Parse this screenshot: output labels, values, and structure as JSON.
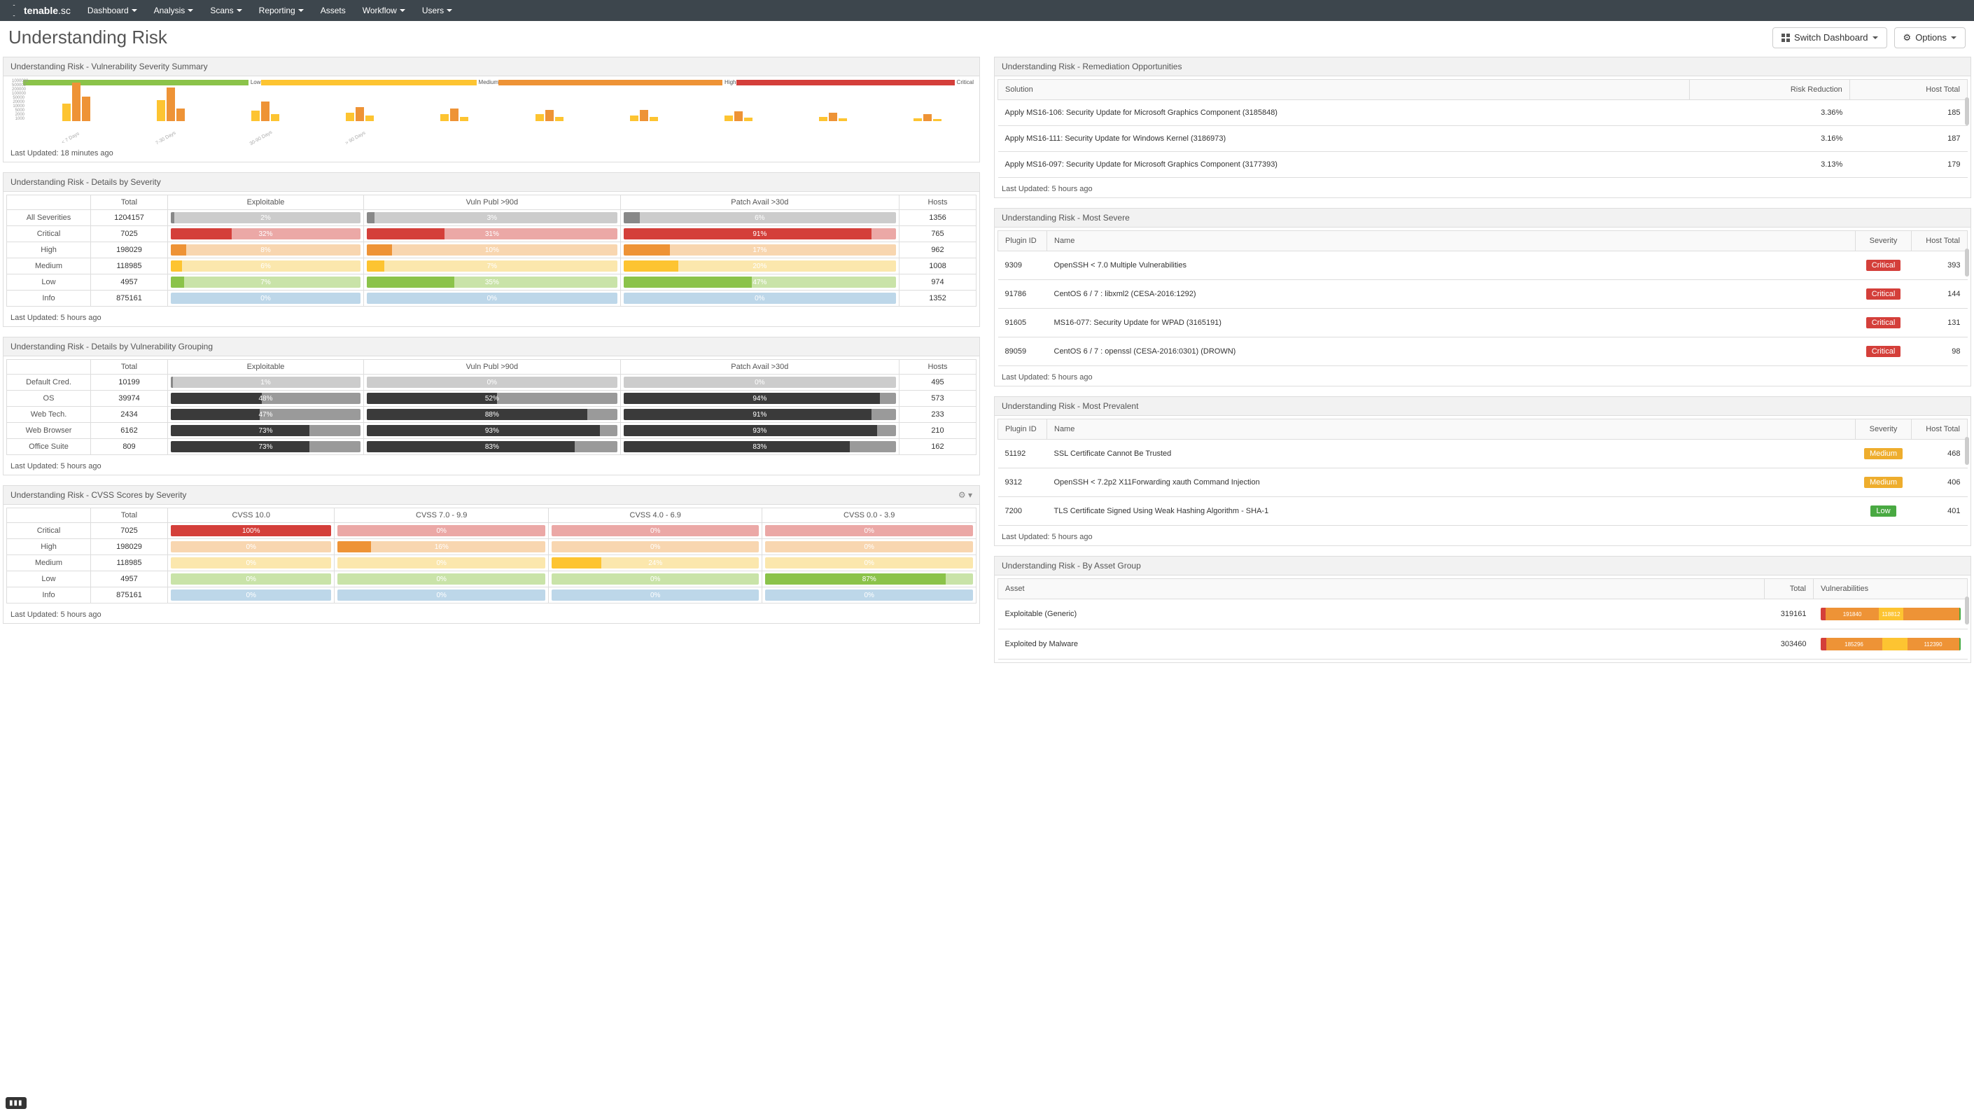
{
  "nav": {
    "brand_bold": "tenable",
    "brand_suffix": ".sc",
    "items": [
      "Dashboard",
      "Analysis",
      "Scans",
      "Reporting",
      "Assets",
      "Workflow",
      "Users"
    ],
    "dropdown": [
      true,
      true,
      true,
      true,
      false,
      true,
      true
    ]
  },
  "page": {
    "title": "Understanding Risk",
    "switch_btn": "Switch Dashboard",
    "options_btn": "Options"
  },
  "colors": {
    "critical": "#d43f3a",
    "critical_bg": "#eba8a6",
    "high": "#ee9336",
    "high_bg": "#f8d6b0",
    "medium": "#fdc431",
    "medium_bg": "#fbe7ad",
    "low": "#8bc34a",
    "low_bg": "#c9e3a8",
    "info": "#7fb3d5",
    "info_bg": "#bdd7e9",
    "gray": "#888888",
    "gray_bg": "#cccccc",
    "dark": "#3a3a3a",
    "dark_bg": "#9a9a9a"
  },
  "severity_chart": {
    "title": "Understanding Risk - Vulnerability Severity Summary",
    "legend": [
      "Low",
      "Medium",
      "High",
      "Critical"
    ],
    "legend_colors": [
      "#8bc34a",
      "#fdc431",
      "#ee9336",
      "#d43f3a"
    ],
    "yaxis": [
      "1000000",
      "500000",
      "200000",
      "100000",
      "50000",
      "20000",
      "10000",
      "5000",
      "2000",
      "1000"
    ],
    "groups": [
      {
        "x": "< 7 Days",
        "bars": [
          {
            "h": 25,
            "c": "#fdc431"
          },
          {
            "h": 55,
            "c": "#ee9336"
          },
          {
            "h": 35,
            "c": "#ee9336"
          }
        ]
      },
      {
        "x": "7-30 Days",
        "bars": [
          {
            "h": 30,
            "c": "#fdc431"
          },
          {
            "h": 48,
            "c": "#ee9336"
          },
          {
            "h": 18,
            "c": "#ee9336"
          }
        ]
      },
      {
        "x": "30-90 Days",
        "bars": [
          {
            "h": 15,
            "c": "#fdc431"
          },
          {
            "h": 28,
            "c": "#ee9336"
          },
          {
            "h": 10,
            "c": "#fdc431"
          }
        ]
      },
      {
        "x": "> 90 Days",
        "bars": [
          {
            "h": 12,
            "c": "#fdc431"
          },
          {
            "h": 20,
            "c": "#ee9336"
          },
          {
            "h": 8,
            "c": "#fdc431"
          }
        ]
      },
      {
        "x": "",
        "bars": [
          {
            "h": 10,
            "c": "#fdc431"
          },
          {
            "h": 18,
            "c": "#ee9336"
          },
          {
            "h": 6,
            "c": "#fdc431"
          }
        ]
      },
      {
        "x": "",
        "bars": [
          {
            "h": 10,
            "c": "#fdc431"
          },
          {
            "h": 16,
            "c": "#ee9336"
          },
          {
            "h": 6,
            "c": "#fdc431"
          }
        ]
      },
      {
        "x": "",
        "bars": [
          {
            "h": 8,
            "c": "#fdc431"
          },
          {
            "h": 16,
            "c": "#ee9336"
          },
          {
            "h": 6,
            "c": "#fdc431"
          }
        ]
      },
      {
        "x": "",
        "bars": [
          {
            "h": 8,
            "c": "#fdc431"
          },
          {
            "h": 14,
            "c": "#ee9336"
          },
          {
            "h": 5,
            "c": "#fdc431"
          }
        ]
      },
      {
        "x": "",
        "bars": [
          {
            "h": 6,
            "c": "#fdc431"
          },
          {
            "h": 12,
            "c": "#ee9336"
          },
          {
            "h": 4,
            "c": "#fdc431"
          }
        ]
      },
      {
        "x": "",
        "bars": [
          {
            "h": 4,
            "c": "#fdc431"
          },
          {
            "h": 10,
            "c": "#ee9336"
          },
          {
            "h": 3,
            "c": "#fdc431"
          }
        ]
      }
    ],
    "last_updated": "Last Updated: 18 minutes ago"
  },
  "details_severity": {
    "title": "Understanding Risk - Details by Severity",
    "headers": [
      "",
      "Total",
      "Exploitable",
      "Vuln Publ >90d",
      "Patch Avail >30d",
      "Hosts"
    ],
    "rows": [
      {
        "label": "All Severities",
        "total": "1204157",
        "pcts": [
          {
            "v": "2%",
            "p": 2,
            "c": "gray"
          },
          {
            "v": "3%",
            "p": 3,
            "c": "gray"
          },
          {
            "v": "6%",
            "p": 6,
            "c": "gray"
          }
        ],
        "hosts": "1356"
      },
      {
        "label": "Critical",
        "total": "7025",
        "pcts": [
          {
            "v": "32%",
            "p": 32,
            "c": "critical"
          },
          {
            "v": "31%",
            "p": 31,
            "c": "critical"
          },
          {
            "v": "91%",
            "p": 91,
            "c": "critical"
          }
        ],
        "hosts": "765"
      },
      {
        "label": "High",
        "total": "198029",
        "pcts": [
          {
            "v": "8%",
            "p": 8,
            "c": "high"
          },
          {
            "v": "10%",
            "p": 10,
            "c": "high"
          },
          {
            "v": "17%",
            "p": 17,
            "c": "high"
          }
        ],
        "hosts": "962"
      },
      {
        "label": "Medium",
        "total": "118985",
        "pcts": [
          {
            "v": "6%",
            "p": 6,
            "c": "medium"
          },
          {
            "v": "7%",
            "p": 7,
            "c": "medium"
          },
          {
            "v": "20%",
            "p": 20,
            "c": "medium"
          }
        ],
        "hosts": "1008"
      },
      {
        "label": "Low",
        "total": "4957",
        "pcts": [
          {
            "v": "7%",
            "p": 7,
            "c": "low"
          },
          {
            "v": "35%",
            "p": 35,
            "c": "low"
          },
          {
            "v": "47%",
            "p": 47,
            "c": "low"
          }
        ],
        "hosts": "974"
      },
      {
        "label": "Info",
        "total": "875161",
        "pcts": [
          {
            "v": "0%",
            "p": 0,
            "c": "info"
          },
          {
            "v": "0%",
            "p": 0,
            "c": "info"
          },
          {
            "v": "0%",
            "p": 0,
            "c": "info"
          }
        ],
        "hosts": "1352"
      }
    ],
    "last_updated": "Last Updated: 5 hours ago"
  },
  "details_grouping": {
    "title": "Understanding Risk - Details by Vulnerability Grouping",
    "headers": [
      "",
      "Total",
      "Exploitable",
      "Vuln Publ >90d",
      "Patch Avail >30d",
      "Hosts"
    ],
    "rows": [
      {
        "label": "Default Cred.",
        "total": "10199",
        "pcts": [
          {
            "v": "1%",
            "p": 1,
            "c": "gray"
          },
          {
            "v": "0%",
            "p": 0,
            "c": "gray"
          },
          {
            "v": "0%",
            "p": 0,
            "c": "gray"
          }
        ],
        "hosts": "495"
      },
      {
        "label": "OS",
        "total": "39974",
        "pcts": [
          {
            "v": "48%",
            "p": 48,
            "c": "dark"
          },
          {
            "v": "52%",
            "p": 52,
            "c": "dark"
          },
          {
            "v": "94%",
            "p": 94,
            "c": "dark"
          }
        ],
        "hosts": "573"
      },
      {
        "label": "Web Tech.",
        "total": "2434",
        "pcts": [
          {
            "v": "47%",
            "p": 47,
            "c": "dark"
          },
          {
            "v": "88%",
            "p": 88,
            "c": "dark"
          },
          {
            "v": "91%",
            "p": 91,
            "c": "dark"
          }
        ],
        "hosts": "233"
      },
      {
        "label": "Web Browser",
        "total": "6162",
        "pcts": [
          {
            "v": "73%",
            "p": 73,
            "c": "dark"
          },
          {
            "v": "93%",
            "p": 93,
            "c": "dark"
          },
          {
            "v": "93%",
            "p": 93,
            "c": "dark"
          }
        ],
        "hosts": "210"
      },
      {
        "label": "Office Suite",
        "total": "809",
        "pcts": [
          {
            "v": "73%",
            "p": 73,
            "c": "dark"
          },
          {
            "v": "83%",
            "p": 83,
            "c": "dark"
          },
          {
            "v": "83%",
            "p": 83,
            "c": "dark"
          }
        ],
        "hosts": "162"
      }
    ],
    "last_updated": "Last Updated: 5 hours ago"
  },
  "cvss": {
    "title": "Understanding Risk - CVSS Scores by Severity",
    "headers": [
      "",
      "Total",
      "CVSS 10.0",
      "CVSS 7.0 - 9.9",
      "CVSS 4.0 - 6.9",
      "CVSS 0.0 - 3.9"
    ],
    "rows": [
      {
        "label": "Critical",
        "total": "7025",
        "pcts": [
          {
            "v": "100%",
            "p": 100,
            "c": "critical"
          },
          {
            "v": "0%",
            "p": 0,
            "c": "critical"
          },
          {
            "v": "0%",
            "p": 0,
            "c": "critical"
          },
          {
            "v": "0%",
            "p": 0,
            "c": "critical"
          }
        ]
      },
      {
        "label": "High",
        "total": "198029",
        "pcts": [
          {
            "v": "0%",
            "p": 0,
            "c": "high"
          },
          {
            "v": "16%",
            "p": 16,
            "c": "high"
          },
          {
            "v": "0%",
            "p": 0,
            "c": "high"
          },
          {
            "v": "0%",
            "p": 0,
            "c": "high"
          }
        ]
      },
      {
        "label": "Medium",
        "total": "118985",
        "pcts": [
          {
            "v": "0%",
            "p": 0,
            "c": "medium"
          },
          {
            "v": "0%",
            "p": 0,
            "c": "medium"
          },
          {
            "v": "24%",
            "p": 24,
            "c": "medium"
          },
          {
            "v": "0%",
            "p": 0,
            "c": "medium"
          }
        ]
      },
      {
        "label": "Low",
        "total": "4957",
        "pcts": [
          {
            "v": "0%",
            "p": 0,
            "c": "low"
          },
          {
            "v": "0%",
            "p": 0,
            "c": "low"
          },
          {
            "v": "0%",
            "p": 0,
            "c": "low"
          },
          {
            "v": "87%",
            "p": 87,
            "c": "low"
          }
        ]
      },
      {
        "label": "Info",
        "total": "875161",
        "pcts": [
          {
            "v": "0%",
            "p": 0,
            "c": "info"
          },
          {
            "v": "0%",
            "p": 0,
            "c": "info"
          },
          {
            "v": "0%",
            "p": 0,
            "c": "info"
          },
          {
            "v": "0%",
            "p": 0,
            "c": "info"
          }
        ]
      }
    ],
    "last_updated": "Last Updated: 5 hours ago"
  },
  "remediation": {
    "title": "Understanding Risk - Remediation Opportunities",
    "headers": [
      "Solution",
      "Risk Reduction",
      "Host Total"
    ],
    "rows": [
      {
        "sol": "Apply MS16-106: Security Update for Microsoft Graphics Component (3185848)",
        "rr": "3.36%",
        "ht": "185"
      },
      {
        "sol": "Apply MS16-111: Security Update for Windows Kernel (3186973)",
        "rr": "3.16%",
        "ht": "187"
      },
      {
        "sol": "Apply MS16-097: Security Update for Microsoft Graphics Component (3177393)",
        "rr": "3.13%",
        "ht": "179"
      }
    ],
    "last_updated": "Last Updated: 5 hours ago"
  },
  "most_severe": {
    "title": "Understanding Risk - Most Severe",
    "headers": [
      "Plugin ID",
      "Name",
      "Severity",
      "Host Total"
    ],
    "rows": [
      {
        "id": "9309",
        "name": "OpenSSH < 7.0 Multiple Vulnerabilities",
        "sev": "Critical",
        "sev_color": "#d43f3a",
        "ht": "393"
      },
      {
        "id": "91786",
        "name": "CentOS 6 / 7 : libxml2 (CESA-2016:1292)",
        "sev": "Critical",
        "sev_color": "#d43f3a",
        "ht": "144"
      },
      {
        "id": "91605",
        "name": "MS16-077: Security Update for WPAD (3165191)",
        "sev": "Critical",
        "sev_color": "#d43f3a",
        "ht": "131"
      },
      {
        "id": "89059",
        "name": "CentOS 6 / 7 : openssl (CESA-2016:0301) (DROWN)",
        "sev": "Critical",
        "sev_color": "#d43f3a",
        "ht": "98"
      }
    ],
    "last_updated": "Last Updated: 5 hours ago"
  },
  "most_prevalent": {
    "title": "Understanding Risk - Most Prevalent",
    "headers": [
      "Plugin ID",
      "Name",
      "Severity",
      "Host Total"
    ],
    "rows": [
      {
        "id": "51192",
        "name": "SSL Certificate Cannot Be Trusted",
        "sev": "Medium",
        "sev_color": "#eead2d",
        "ht": "468"
      },
      {
        "id": "9312",
        "name": "OpenSSH < 7.2p2 X11Forwarding xauth Command Injection",
        "sev": "Medium",
        "sev_color": "#eead2d",
        "ht": "406"
      },
      {
        "id": "7200",
        "name": "TLS Certificate Signed Using Weak Hashing Algorithm - SHA-1",
        "sev": "Low",
        "sev_color": "#49a942",
        "ht": "401"
      }
    ],
    "last_updated": "Last Updated: 5 hours ago"
  },
  "asset_group": {
    "title": "Understanding Risk - By Asset Group",
    "headers": [
      "Asset",
      "Total",
      "Vulnerabilities"
    ],
    "rows": [
      {
        "asset": "Exploitable (Generic)",
        "total": "319161",
        "segs": [
          {
            "p": 4,
            "c": "#d43f3a",
            "l": ""
          },
          {
            "p": 38,
            "c": "#ee9336",
            "l": "191840"
          },
          {
            "p": 18,
            "c": "#fdc431",
            "l": "118812"
          },
          {
            "p": 40,
            "c": "#ee9336",
            "l": ""
          },
          {
            "p": 1,
            "c": "#49a942",
            "l": ""
          }
        ]
      },
      {
        "asset": "Exploited by Malware",
        "total": "303460",
        "segs": [
          {
            "p": 4,
            "c": "#d43f3a",
            "l": ""
          },
          {
            "p": 40,
            "c": "#ee9336",
            "l": "185296"
          },
          {
            "p": 18,
            "c": "#fdc431",
            "l": ""
          },
          {
            "p": 37,
            "c": "#ee9336",
            "l": "112390"
          },
          {
            "p": 1,
            "c": "#49a942",
            "l": ""
          }
        ]
      }
    ]
  }
}
